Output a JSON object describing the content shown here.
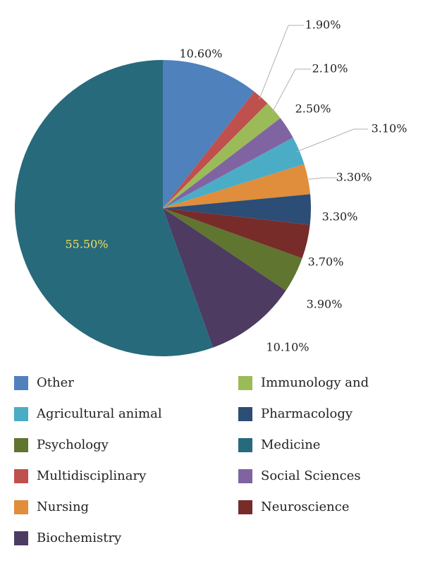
{
  "chart_data": {
    "type": "pie",
    "slices": [
      {
        "label": "Other",
        "value": 10.6,
        "display": "10.60%",
        "color": "#4f81bd"
      },
      {
        "label": "Multidisciplinary",
        "value": 1.9,
        "display": "1.90%",
        "color": "#c0504d"
      },
      {
        "label": "Immunology and",
        "value": 2.1,
        "display": "2.10%",
        "color": "#9bbb59"
      },
      {
        "label": "Social Sciences",
        "value": 2.5,
        "display": "2.50%",
        "color": "#8064a2"
      },
      {
        "label": "Agricultural animal",
        "value": 3.1,
        "display": "3.10%",
        "color": "#4bacc6"
      },
      {
        "label": "Nursing",
        "value": 3.3,
        "display": "3.30%",
        "color": "#e08d3c"
      },
      {
        "label": "Pharmacology",
        "value": 3.3,
        "display": "3.30%",
        "color": "#2c4d75"
      },
      {
        "label": "Neuroscience",
        "value": 3.7,
        "display": "3.70%",
        "color": "#772c2a"
      },
      {
        "label": "Psychology",
        "value": 3.9,
        "display": "3.90%",
        "color": "#5f7530"
      },
      {
        "label": "Biochemistry",
        "value": 10.1,
        "display": "10.10%",
        "color": "#4d3b62"
      },
      {
        "label": "Medicine",
        "value": 55.5,
        "display": "55.50%",
        "color": "#276a7c"
      }
    ],
    "legend_placement": "bottom",
    "legend_columns": [
      [
        "Other",
        "Agricultural animal",
        "Psychology",
        "Multidisciplinary",
        "Nursing",
        "Biochemistry"
      ],
      [
        "Immunology and",
        "Pharmacology",
        "Medicine",
        "Social Sciences",
        "Neuroscience"
      ]
    ]
  }
}
